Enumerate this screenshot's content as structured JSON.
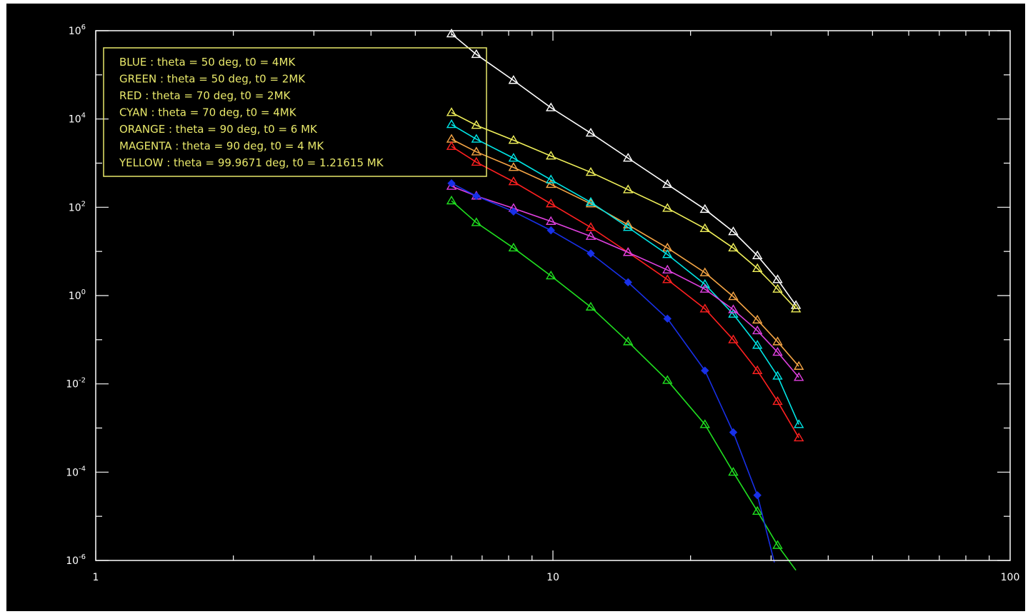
{
  "chart_data": {
    "type": "line",
    "title": "",
    "xlabel": "",
    "ylabel": "",
    "x_scale": "log",
    "y_scale": "log",
    "xlim": [
      1,
      100
    ],
    "ylim": [
      1e-06,
      1000000.0
    ],
    "grid": false,
    "legend_position": "top-left",
    "x_tick_labels": [
      {
        "value": 1,
        "label": "1"
      },
      {
        "value": 10,
        "label": "10"
      },
      {
        "value": 100,
        "label": "100"
      }
    ],
    "y_tick_labels": [
      {
        "value": 1000000.0,
        "base": "10",
        "exp": "6"
      },
      {
        "value": 10000.0,
        "base": "10",
        "exp": "4"
      },
      {
        "value": 100.0,
        "base": "10",
        "exp": "2"
      },
      {
        "value": 1,
        "base": "10",
        "exp": "0"
      },
      {
        "value": 0.01,
        "base": "10",
        "exp": "-2"
      },
      {
        "value": 0.0001,
        "base": "10",
        "exp": "-4"
      },
      {
        "value": 1e-06,
        "base": "10",
        "exp": "-6"
      }
    ],
    "legend": [
      {
        "text": "BLUE : theta = 50 deg, t0 = 4MK"
      },
      {
        "text": "GREEN : theta = 50 deg, t0 = 2MK"
      },
      {
        "text": "RED : theta = 70 deg, t0 = 2MK"
      },
      {
        "text": "CYAN : theta = 70 deg, t0 = 4MK"
      },
      {
        "text": "ORANGE : theta = 90 deg, t0 = 6 MK"
      },
      {
        "text": "MAGENTA : theta = 90 deg, t0 = 4 MK"
      },
      {
        "text": "YELLOW : theta = 99.9671 deg, t0 = 1.21615 MK"
      }
    ],
    "series": [
      {
        "color": "#ffffff",
        "marker": "triangle",
        "x": [
          6.0,
          6.8,
          8.2,
          9.9,
          12.1,
          14.6,
          17.8,
          21.5,
          24.8,
          28.0,
          31.0,
          34.0
        ],
        "y": [
          850000,
          290000,
          75000,
          18000,
          4800,
          1300,
          330,
          90,
          28,
          8,
          2.3,
          0.6
        ]
      },
      {
        "color": "#f0f05a",
        "marker": "triangle",
        "x": [
          6.0,
          6.8,
          8.2,
          9.9,
          12.1,
          14.6,
          17.8,
          21.5,
          24.8,
          28.0,
          31.0,
          34.0
        ],
        "y": [
          14000,
          7200,
          3300,
          1450,
          620,
          250,
          95,
          33,
          12,
          4.1,
          1.4,
          0.5
        ]
      },
      {
        "color": "#f5a545",
        "marker": "triangle",
        "x": [
          6.0,
          6.8,
          8.2,
          9.9,
          12.1,
          14.6,
          17.8,
          21.5,
          24.8,
          28.0,
          31.0,
          34.5
        ],
        "y": [
          3500,
          1800,
          800,
          330,
          120,
          40,
          12,
          3.3,
          0.95,
          0.28,
          0.09,
          0.025
        ]
      },
      {
        "color": "#00e5e5",
        "marker": "triangle",
        "x": [
          6.0,
          6.8,
          8.2,
          9.9,
          12.1,
          14.6,
          17.8,
          21.5,
          24.8,
          28.0,
          31.0,
          34.5
        ],
        "y": [
          7500,
          3500,
          1300,
          420,
          130,
          35,
          8.5,
          1.8,
          0.38,
          0.075,
          0.015,
          0.0012
        ]
      },
      {
        "color": "#ff2020",
        "marker": "triangle",
        "x": [
          6.0,
          6.8,
          8.2,
          9.9,
          12.1,
          14.6,
          17.8,
          21.5,
          24.8,
          28.0,
          31.0,
          34.5
        ],
        "y": [
          2400,
          1050,
          380,
          120,
          35,
          9.5,
          2.3,
          0.5,
          0.1,
          0.02,
          0.004,
          0.0006
        ]
      },
      {
        "color": "#e040e0",
        "marker": "triangle",
        "x": [
          6.0,
          6.8,
          8.2,
          9.9,
          12.1,
          14.6,
          17.8,
          21.5,
          24.8,
          28.0,
          31.0,
          34.5
        ],
        "y": [
          300,
          180,
          95,
          48,
          22,
          9.5,
          3.8,
          1.4,
          0.48,
          0.16,
          0.052,
          0.014
        ]
      },
      {
        "color": "#20e020",
        "marker": "triangle",
        "x": [
          6.0,
          6.8,
          8.2,
          9.9,
          12.1,
          14.6,
          17.8,
          21.5,
          24.8,
          28.0,
          31.0,
          34.0
        ],
        "y": [
          140,
          45,
          12,
          2.8,
          0.55,
          0.09,
          0.012,
          0.0012,
          0.0001,
          1.3e-05,
          2.2e-06,
          6e-07
        ]
      },
      {
        "color": "#1830e8",
        "marker": "diamond",
        "x": [
          6.0,
          6.8,
          8.2,
          9.9,
          12.1,
          14.6,
          17.8,
          21.5,
          24.8,
          28.0,
          30.5
        ],
        "y": [
          350,
          180,
          80,
          30,
          9,
          2.0,
          0.3,
          0.02,
          0.0008,
          3e-05,
          9e-07
        ]
      }
    ]
  }
}
